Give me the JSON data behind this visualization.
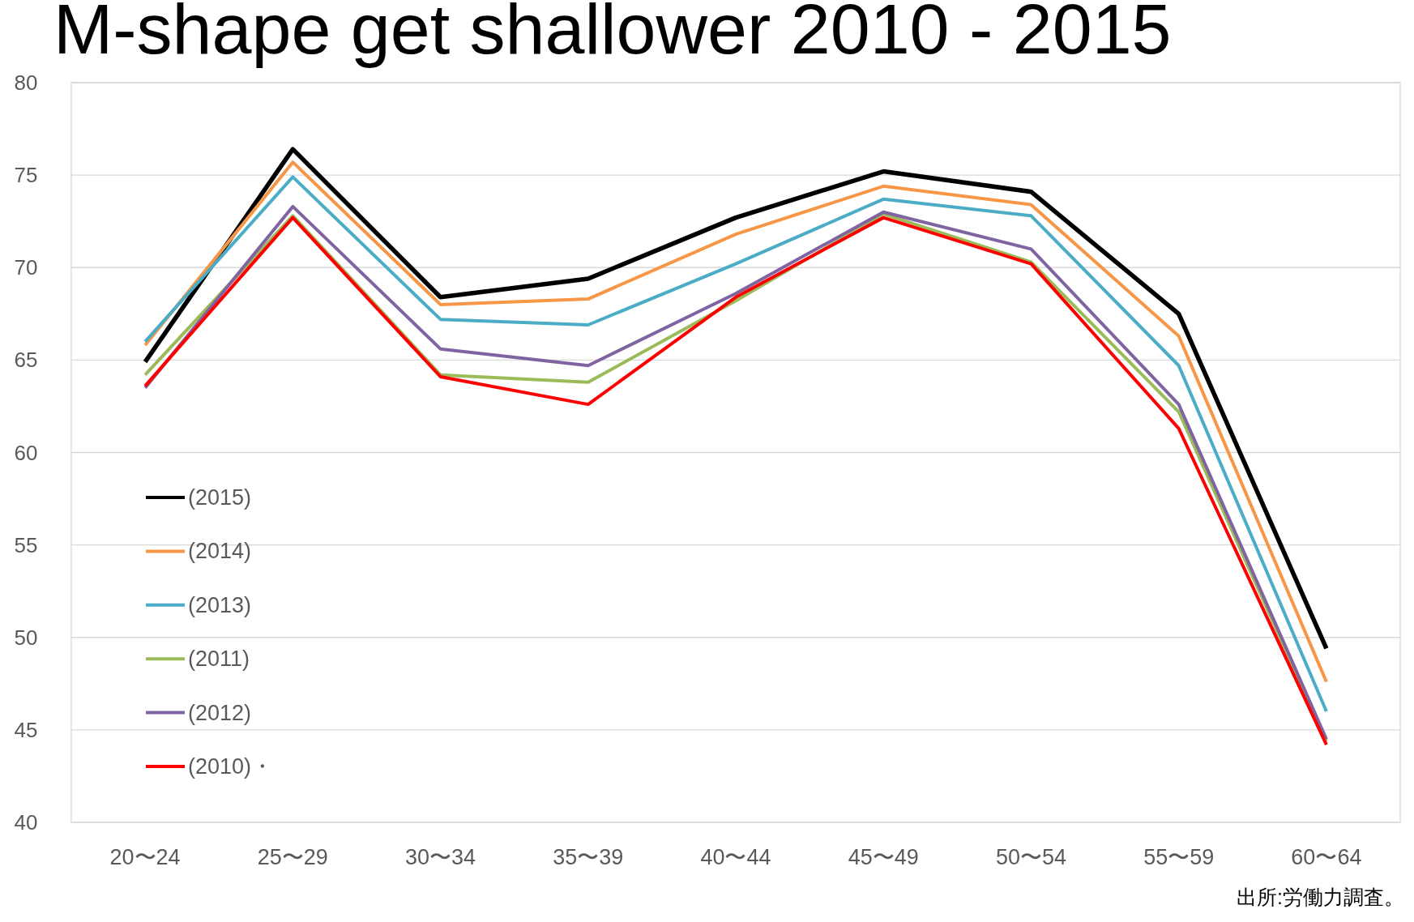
{
  "chart_data": {
    "type": "line",
    "title": "M-shape get shallower 2010 - 2015",
    "categories": [
      "20〜24",
      "25〜29",
      "30〜34",
      "35〜39",
      "40〜44",
      "45〜49",
      "50〜54",
      "55〜59",
      "60〜64"
    ],
    "series": [
      {
        "name": "(2015)",
        "color": "#000000",
        "values": [
          64.9,
          76.4,
          68.4,
          69.4,
          72.7,
          75.2,
          74.1,
          67.5,
          49.4
        ]
      },
      {
        "name": "(2014)",
        "color": "#f79646",
        "values": [
          65.8,
          75.7,
          68.0,
          68.3,
          71.8,
          74.4,
          73.4,
          66.3,
          47.6
        ]
      },
      {
        "name": "(2013)",
        "color": "#4bacc6",
        "values": [
          66.0,
          74.9,
          67.2,
          66.9,
          70.2,
          73.7,
          72.8,
          64.7,
          46.0
        ]
      },
      {
        "name": "(2011)",
        "color": "#9bbb59",
        "values": [
          64.2,
          72.8,
          64.2,
          63.8,
          68.2,
          72.9,
          70.3,
          62.2,
          44.4
        ]
      },
      {
        "name": "(2012)",
        "color": "#8064a2",
        "values": [
          63.5,
          73.3,
          65.6,
          64.7,
          68.6,
          73.0,
          71.0,
          62.6,
          44.5
        ]
      },
      {
        "name": "(2010)・",
        "color": "#ff0000",
        "values": [
          63.6,
          72.7,
          64.1,
          62.6,
          68.4,
          72.7,
          70.2,
          61.3,
          44.2
        ]
      }
    ],
    "ylim": [
      40,
      80
    ],
    "yticks": [
      40,
      45,
      50,
      55,
      60,
      65,
      70,
      75,
      80
    ],
    "grid": "y",
    "legend": "left",
    "marker": "none",
    "line_style": "solid",
    "annotations": [
      "出所:労働力調査。"
    ]
  }
}
